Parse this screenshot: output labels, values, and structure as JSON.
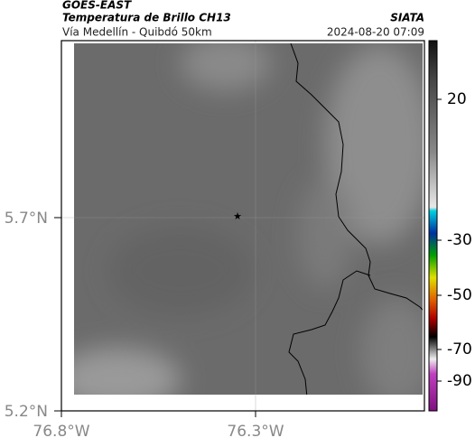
{
  "header": {
    "source": "GOES-EAST",
    "title": "Temperatura de Brillo CH13",
    "subtitle": "Vía Medellín - Quibdó 50km",
    "org": "SIATA",
    "datetime": "2024-08-20 07:09"
  },
  "map": {
    "lat_labels": [
      "5.7°N",
      "5.2°N"
    ],
    "lon_labels": [
      "76.8°W",
      "76.3°W"
    ]
  },
  "colorbar": {
    "ticks": [
      "20",
      "-30",
      "-50",
      "-70",
      "-90"
    ]
  }
}
